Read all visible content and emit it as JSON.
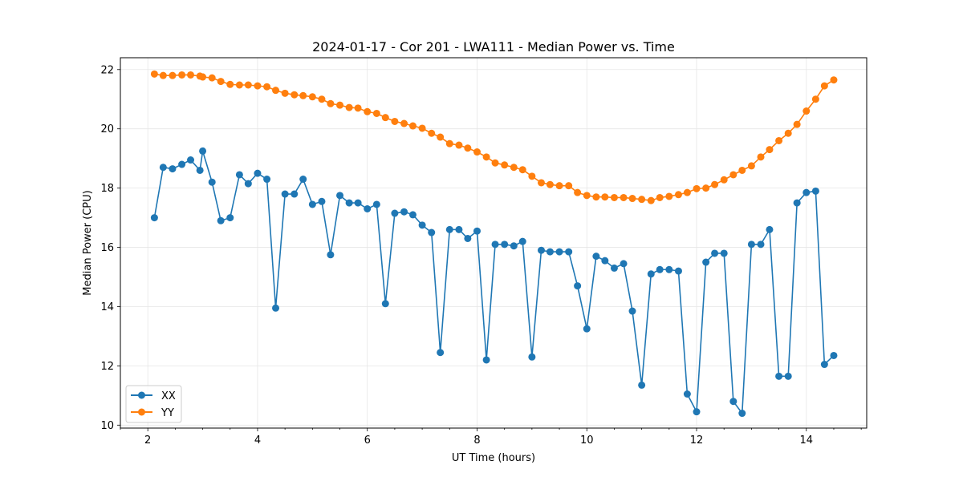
{
  "chart_data": {
    "type": "line",
    "title": "2024-01-17 - Cor 201 - LWA111 - Median Power vs. Time",
    "xlabel": "UT Time (hours)",
    "ylabel": "Median Power (CPU)",
    "xlim": [
      1.5,
      15.1
    ],
    "ylim": [
      9.9,
      22.4
    ],
    "xticks": [
      2,
      4,
      6,
      8,
      10,
      12,
      14
    ],
    "yticks": [
      10,
      12,
      14,
      16,
      18,
      20,
      22
    ],
    "xticks_minor_step": 0.5,
    "grid": true,
    "legend_position": "lower-left",
    "series": [
      {
        "name": "XX",
        "color": "#1f77b4",
        "x": [
          2.12,
          2.28,
          2.45,
          2.62,
          2.78,
          2.95,
          3.0,
          3.17,
          3.33,
          3.5,
          3.67,
          3.83,
          4.0,
          4.17,
          4.33,
          4.5,
          4.67,
          4.83,
          5.0,
          5.17,
          5.33,
          5.5,
          5.67,
          5.83,
          6.0,
          6.17,
          6.33,
          6.5,
          6.67,
          6.83,
          7.0,
          7.17,
          7.33,
          7.5,
          7.67,
          7.83,
          8.0,
          8.17,
          8.33,
          8.5,
          8.67,
          8.83,
          9.0,
          9.17,
          9.33,
          9.5,
          9.67,
          9.83,
          10.0,
          10.17,
          10.33,
          10.5,
          10.67,
          10.83,
          11.0,
          11.17,
          11.33,
          11.5,
          11.67,
          11.83,
          12.0,
          12.17,
          12.33,
          12.5,
          12.67,
          12.83,
          13.0,
          13.17,
          13.33,
          13.5,
          13.67,
          13.83,
          14.0,
          14.17,
          14.33,
          14.5
        ],
        "y": [
          17.0,
          18.7,
          18.65,
          18.8,
          18.95,
          18.6,
          19.25,
          18.2,
          16.9,
          17.0,
          18.45,
          18.15,
          18.5,
          18.3,
          13.95,
          17.8,
          17.8,
          18.3,
          17.45,
          17.55,
          15.75,
          17.75,
          17.5,
          17.5,
          17.3,
          17.45,
          14.1,
          17.15,
          17.2,
          17.1,
          16.75,
          16.5,
          12.45,
          16.6,
          16.6,
          16.3,
          16.55,
          12.2,
          16.1,
          16.1,
          16.05,
          16.2,
          12.3,
          15.9,
          15.85,
          15.85,
          15.85,
          14.7,
          13.25,
          15.7,
          15.55,
          15.3,
          15.45,
          13.85,
          11.35,
          15.1,
          15.25,
          15.25,
          15.2,
          11.05,
          10.45,
          15.5,
          15.8,
          15.8,
          10.8,
          10.4,
          16.1,
          16.1,
          16.6,
          11.65,
          11.65,
          17.5,
          17.85,
          17.9,
          12.05,
          12.35
        ]
      },
      {
        "name": "YY",
        "color": "#ff7f0e",
        "x": [
          2.12,
          2.28,
          2.45,
          2.62,
          2.78,
          2.95,
          3.0,
          3.17,
          3.33,
          3.5,
          3.67,
          3.83,
          4.0,
          4.17,
          4.33,
          4.5,
          4.67,
          4.83,
          5.0,
          5.17,
          5.33,
          5.5,
          5.67,
          5.83,
          6.0,
          6.17,
          6.33,
          6.5,
          6.67,
          6.83,
          7.0,
          7.17,
          7.33,
          7.5,
          7.67,
          7.83,
          8.0,
          8.17,
          8.33,
          8.5,
          8.67,
          8.83,
          9.0,
          9.17,
          9.33,
          9.5,
          9.67,
          9.83,
          10.0,
          10.17,
          10.33,
          10.5,
          10.67,
          10.83,
          11.0,
          11.17,
          11.33,
          11.5,
          11.67,
          11.83,
          12.0,
          12.17,
          12.33,
          12.5,
          12.67,
          12.83,
          13.0,
          13.17,
          13.33,
          13.5,
          13.67,
          13.83,
          14.0,
          14.17,
          14.33,
          14.5
        ],
        "y": [
          21.85,
          21.8,
          21.8,
          21.82,
          21.82,
          21.78,
          21.75,
          21.72,
          21.6,
          21.5,
          21.48,
          21.48,
          21.45,
          21.42,
          21.3,
          21.2,
          21.15,
          21.12,
          21.08,
          21.0,
          20.85,
          20.8,
          20.72,
          20.7,
          20.58,
          20.52,
          20.38,
          20.25,
          20.18,
          20.1,
          20.02,
          19.85,
          19.72,
          19.5,
          19.45,
          19.35,
          19.22,
          19.05,
          18.85,
          18.78,
          18.7,
          18.62,
          18.4,
          18.18,
          18.12,
          18.08,
          18.08,
          17.85,
          17.75,
          17.7,
          17.7,
          17.68,
          17.68,
          17.65,
          17.62,
          17.58,
          17.68,
          17.72,
          17.78,
          17.85,
          17.98,
          18.0,
          18.12,
          18.28,
          18.45,
          18.6,
          18.75,
          19.05,
          19.3,
          19.6,
          19.85,
          20.15,
          20.6,
          21.0,
          21.45,
          21.65
        ]
      }
    ]
  }
}
